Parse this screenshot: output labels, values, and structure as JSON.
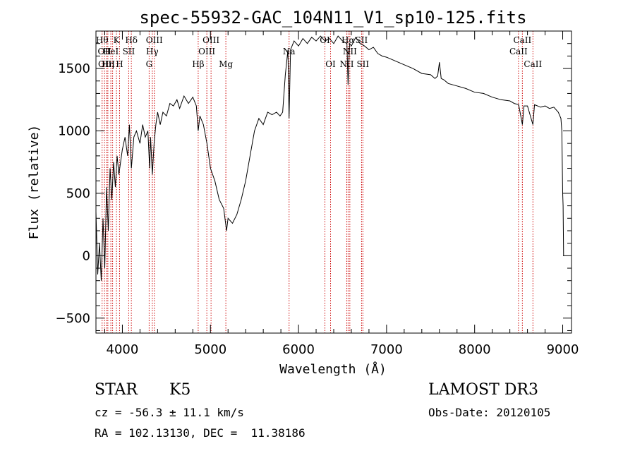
{
  "chart_data": {
    "type": "line",
    "title": "spec-55932-GAC_104N11_V1_sp10-125.fits",
    "xlabel": "Wavelength (Å)",
    "ylabel": "Flux (relative)",
    "xlim": [
      3700,
      9100
    ],
    "ylim": [
      -620,
      1800
    ],
    "x_ticks": [
      4000,
      5000,
      6000,
      7000,
      8000,
      9000
    ],
    "y_ticks": [
      -500,
      0,
      500,
      1000,
      1500
    ],
    "series": [
      {
        "name": "spectrum",
        "points": [
          [
            3700,
            350
          ],
          [
            3720,
            -150
          ],
          [
            3740,
            100
          ],
          [
            3760,
            -200
          ],
          [
            3780,
            300
          ],
          [
            3800,
            -100
          ],
          [
            3820,
            550
          ],
          [
            3840,
            200
          ],
          [
            3860,
            700
          ],
          [
            3880,
            450
          ],
          [
            3900,
            750
          ],
          [
            3920,
            550
          ],
          [
            3940,
            800
          ],
          [
            3960,
            650
          ],
          [
            3980,
            750
          ],
          [
            4000,
            850
          ],
          [
            4030,
            950
          ],
          [
            4060,
            800
          ],
          [
            4080,
            1050
          ],
          [
            4102,
            700
          ],
          [
            4130,
            950
          ],
          [
            4160,
            1000
          ],
          [
            4200,
            900
          ],
          [
            4230,
            1050
          ],
          [
            4260,
            950
          ],
          [
            4290,
            1000
          ],
          [
            4310,
            700
          ],
          [
            4320,
            950
          ],
          [
            4340,
            650
          ],
          [
            4360,
            900
          ],
          [
            4380,
            1050
          ],
          [
            4400,
            1150
          ],
          [
            4430,
            1050
          ],
          [
            4460,
            1150
          ],
          [
            4500,
            1120
          ],
          [
            4540,
            1220
          ],
          [
            4580,
            1200
          ],
          [
            4620,
            1250
          ],
          [
            4650,
            1180
          ],
          [
            4700,
            1280
          ],
          [
            4750,
            1220
          ],
          [
            4800,
            1270
          ],
          [
            4840,
            1200
          ],
          [
            4861,
            1000
          ],
          [
            4880,
            1120
          ],
          [
            4920,
            1050
          ],
          [
            4960,
            900
          ],
          [
            5000,
            700
          ],
          [
            5050,
            600
          ],
          [
            5100,
            450
          ],
          [
            5150,
            380
          ],
          [
            5183,
            200
          ],
          [
            5200,
            300
          ],
          [
            5250,
            260
          ],
          [
            5300,
            330
          ],
          [
            5350,
            450
          ],
          [
            5400,
            600
          ],
          [
            5450,
            800
          ],
          [
            5500,
            1000
          ],
          [
            5550,
            1100
          ],
          [
            5600,
            1050
          ],
          [
            5650,
            1150
          ],
          [
            5700,
            1130
          ],
          [
            5750,
            1150
          ],
          [
            5790,
            1120
          ],
          [
            5820,
            1150
          ],
          [
            5850,
            1450
          ],
          [
            5880,
            1650
          ],
          [
            5893,
            1100
          ],
          [
            5910,
            1650
          ],
          [
            5950,
            1720
          ],
          [
            6000,
            1680
          ],
          [
            6050,
            1740
          ],
          [
            6100,
            1700
          ],
          [
            6150,
            1750
          ],
          [
            6200,
            1720
          ],
          [
            6250,
            1760
          ],
          [
            6300,
            1720
          ],
          [
            6350,
            1740
          ],
          [
            6400,
            1700
          ],
          [
            6450,
            1760
          ],
          [
            6500,
            1720
          ],
          [
            6550,
            1700
          ],
          [
            6563,
            1370
          ],
          [
            6580,
            1700
          ],
          [
            6600,
            1680
          ],
          [
            6650,
            1750
          ],
          [
            6700,
            1700
          ],
          [
            6750,
            1680
          ],
          [
            6800,
            1650
          ],
          [
            6850,
            1670
          ],
          [
            6900,
            1620
          ],
          [
            6950,
            1600
          ],
          [
            7000,
            1590
          ],
          [
            7100,
            1560
          ],
          [
            7200,
            1530
          ],
          [
            7300,
            1500
          ],
          [
            7400,
            1460
          ],
          [
            7500,
            1450
          ],
          [
            7550,
            1420
          ],
          [
            7580,
            1440
          ],
          [
            7600,
            1550
          ],
          [
            7620,
            1420
          ],
          [
            7650,
            1410
          ],
          [
            7700,
            1380
          ],
          [
            7800,
            1360
          ],
          [
            7900,
            1340
          ],
          [
            8000,
            1310
          ],
          [
            8100,
            1300
          ],
          [
            8200,
            1270
          ],
          [
            8300,
            1250
          ],
          [
            8400,
            1240
          ],
          [
            8450,
            1220
          ],
          [
            8500,
            1210
          ],
          [
            8542,
            1050
          ],
          [
            8560,
            1200
          ],
          [
            8600,
            1200
          ],
          [
            8662,
            1050
          ],
          [
            8680,
            1210
          ],
          [
            8750,
            1190
          ],
          [
            8800,
            1200
          ],
          [
            8850,
            1180
          ],
          [
            8900,
            1190
          ],
          [
            8950,
            1150
          ],
          [
            8980,
            1100
          ],
          [
            8990,
            1000
          ],
          [
            9000,
            500
          ],
          [
            9005,
            400
          ],
          [
            9010,
            0
          ]
        ]
      }
    ],
    "lines": [
      {
        "x": 3770,
        "label": "Hθ",
        "row": 1
      },
      {
        "x": 3797,
        "label": "OII",
        "row": 2
      },
      {
        "x": 3820,
        "label": "OIII",
        "row": 3
      },
      {
        "x": 3835,
        "label": "Hη",
        "row": 3
      },
      {
        "x": 3869,
        "label": "HeI",
        "row": 2
      },
      {
        "x": 3889,
        "label": "",
        "row": 0
      },
      {
        "x": 3933,
        "label": "K",
        "row": 1
      },
      {
        "x": 3968,
        "label": "H",
        "row": 3
      },
      {
        "x": 4072,
        "label": "SII",
        "row": 2
      },
      {
        "x": 4102,
        "label": "Hδ",
        "row": 1
      },
      {
        "x": 4304,
        "label": "G",
        "row": 3
      },
      {
        "x": 4340,
        "label": "Hγ",
        "row": 2
      },
      {
        "x": 4363,
        "label": "OIII",
        "row": 1
      },
      {
        "x": 4861,
        "label": "Hβ",
        "row": 3
      },
      {
        "x": 4959,
        "label": "OIII",
        "row": 2
      },
      {
        "x": 5007,
        "label": "OIII",
        "row": 1
      },
      {
        "x": 5175,
        "label": "Mg",
        "row": 3
      },
      {
        "x": 5893,
        "label": "Na",
        "row": 2
      },
      {
        "x": 6300,
        "label": "OI",
        "row": 1
      },
      {
        "x": 6364,
        "label": "OI",
        "row": 3
      },
      {
        "x": 6548,
        "label": "NII",
        "row": 3
      },
      {
        "x": 6563,
        "label": "Hα",
        "row": 1
      },
      {
        "x": 6583,
        "label": "NII",
        "row": 2
      },
      {
        "x": 6716,
        "label": "SII",
        "row": 1
      },
      {
        "x": 6731,
        "label": "SII",
        "row": 3
      },
      {
        "x": 8498,
        "label": "CaII",
        "row": 2
      },
      {
        "x": 8542,
        "label": "CaII",
        "row": 1
      },
      {
        "x": 8662,
        "label": "CaII",
        "row": 3
      }
    ]
  },
  "info": {
    "class": "STAR",
    "subclass": "K5",
    "survey": "LAMOST DR3",
    "cz": "cz = -56.3 ± 11.1 km/s",
    "obs_date": "Obs-Date: 20120105",
    "radec": "RA = 102.13130, DEC =  11.38186"
  },
  "colors": {
    "axis": "#000000",
    "spectrum": "#000000",
    "line_marker": "#cc0000"
  }
}
